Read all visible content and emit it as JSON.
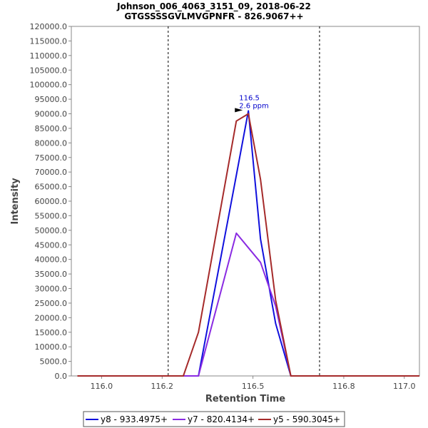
{
  "chart_data": {
    "type": "line",
    "title": "Johnson_006_4063_3151_09, 2018-06-22",
    "subtitle": "GTGSSSSGVLMVGPNFR - 826.9067++",
    "xlabel": "Retention Time",
    "ylabel": "Intensity",
    "xlim": [
      115.9,
      117.05
    ],
    "ylim": [
      0,
      120000
    ],
    "x_ticks": [
      116.0,
      116.2,
      116.5,
      116.8,
      117.0
    ],
    "x_tick_labels": [
      "116.0",
      "116.2",
      "116.5",
      "116.8",
      "117.0"
    ],
    "y_ticks": [
      0,
      5000,
      10000,
      15000,
      20000,
      25000,
      30000,
      35000,
      40000,
      45000,
      50000,
      55000,
      60000,
      65000,
      70000,
      75000,
      80000,
      85000,
      90000,
      95000,
      100000,
      105000,
      110000,
      115000,
      120000
    ],
    "y_tick_labels": [
      "0.0",
      "5000.0",
      "10000.0",
      "15000.0",
      "20000.0",
      "25000.0",
      "30000.0",
      "35000.0",
      "40000.0",
      "45000.0",
      "50000.0",
      "55000.0",
      "60000.0",
      "65000.0",
      "70000.0",
      "75000.0",
      "80000.0",
      "85000.0",
      "90000.0",
      "95000.0",
      "100000.0",
      "105000.0",
      "110000.0",
      "115000.0",
      "120000.0"
    ],
    "grid": false,
    "legend_position": "bottom",
    "boundaries": [
      116.22,
      116.72
    ],
    "annotation": {
      "x": 116.485,
      "y": 91000,
      "line1": "116.5",
      "line2": "2.6 ppm"
    },
    "series": [
      {
        "name": "y8 - 933.4975+",
        "color": "#1010dd",
        "x": [
          115.92,
          116.32,
          116.44,
          116.485,
          116.525,
          116.575,
          116.625,
          117.05
        ],
        "y": [
          0,
          0,
          66000,
          91000,
          47000,
          18000,
          0,
          0
        ]
      },
      {
        "name": "y7 - 820.4134+",
        "color": "#8a2be2",
        "x": [
          115.92,
          116.32,
          116.445,
          116.485,
          116.525,
          116.575,
          116.625,
          117.05
        ],
        "y": [
          0,
          0,
          49000,
          44000,
          39000,
          24000,
          0,
          0
        ]
      },
      {
        "name": "y5 - 590.3045+",
        "color": "#a52a2a",
        "x": [
          115.92,
          116.27,
          116.32,
          116.445,
          116.485,
          116.525,
          116.575,
          116.625,
          117.05
        ],
        "y": [
          0,
          0,
          15000,
          87500,
          90000,
          67500,
          26000,
          0,
          0
        ]
      }
    ]
  }
}
